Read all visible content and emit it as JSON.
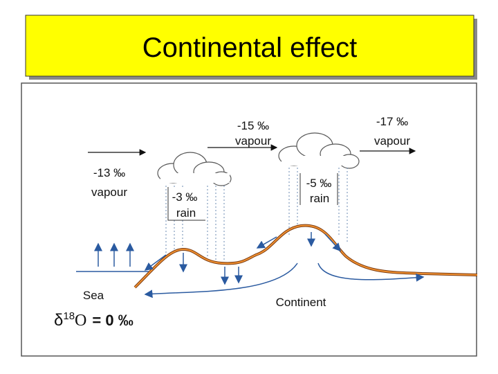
{
  "title": "Continental effect",
  "labels": [
    {
      "value": "-15 ‰",
      "phase": "vapour"
    },
    {
      "value": "-17 ‰",
      "phase": "vapour"
    },
    {
      "value": "-13 ‰",
      "phase": "vapour"
    },
    {
      "value": "-3 ‰",
      "phase": "rain"
    },
    {
      "value": "-5 ‰",
      "phase": "rain"
    }
  ],
  "sea": "Sea",
  "continent": "Continent",
  "delta": {
    "symbol": "δ",
    "superscript": "18",
    "element": "O",
    "equation": "= 0 ‰"
  }
}
